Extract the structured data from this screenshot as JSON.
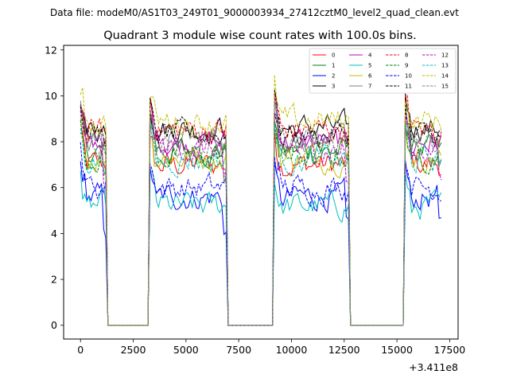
{
  "suptitle": "Data file: modeM0/AS1T03_249T01_9000003934_27412cztM0_level2_quad_clean.evt",
  "chart_data": {
    "type": "line",
    "title": "Quadrant 3 module wise count rates with 100.0s bins.",
    "xlabel": "",
    "ylabel": "",
    "x_offset_label": "+3.411e8",
    "xlim": [
      -800,
      17900
    ],
    "ylim": [
      -0.6,
      12.2
    ],
    "x_ticks": [
      0,
      2500,
      5000,
      7500,
      10000,
      12500,
      15000,
      17500
    ],
    "x_tick_labels": [
      "0",
      "2500",
      "5000",
      "7500",
      "10000",
      "12500",
      "15000",
      "17500"
    ],
    "y_ticks": [
      0,
      2,
      4,
      6,
      8,
      10,
      12
    ],
    "y_tick_labels": [
      "0",
      "2",
      "4",
      "6",
      "8",
      "10",
      "12"
    ],
    "grid": false,
    "legend_position": "top-right",
    "bin_width_s": 100,
    "on_segments": [
      [
        0,
        1200
      ],
      [
        3300,
        6900
      ],
      [
        9200,
        12700
      ],
      [
        15400,
        17100
      ]
    ],
    "off_level": 0,
    "series": [
      {
        "name": "0",
        "color": "#ff0000",
        "dash": "solid",
        "level": 7.0
      },
      {
        "name": "1",
        "color": "#008000",
        "dash": "solid",
        "level": 7.6
      },
      {
        "name": "2",
        "color": "#0000ff",
        "dash": "solid",
        "level": 5.6
      },
      {
        "name": "3",
        "color": "#000000",
        "dash": "solid",
        "level": 8.6
      },
      {
        "name": "4",
        "color": "#bf00bf",
        "dash": "solid",
        "level": 8.0
      },
      {
        "name": "5",
        "color": "#00bfbf",
        "dash": "solid",
        "level": 5.2
      },
      {
        "name": "6",
        "color": "#bfbf00",
        "dash": "solid",
        "level": 7.3
      },
      {
        "name": "7",
        "color": "#808080",
        "dash": "solid",
        "level": 8.1
      },
      {
        "name": "8",
        "color": "#ff0000",
        "dash": "dashed",
        "level": 8.5
      },
      {
        "name": "9",
        "color": "#008000",
        "dash": "dashed",
        "level": 7.4
      },
      {
        "name": "10",
        "color": "#0000ff",
        "dash": "dashed",
        "level": 6.0
      },
      {
        "name": "11",
        "color": "#000000",
        "dash": "dashed",
        "level": 8.3
      },
      {
        "name": "12",
        "color": "#bf00bf",
        "dash": "dashed",
        "level": 7.7
      },
      {
        "name": "13",
        "color": "#00bfbf",
        "dash": "dashed",
        "level": 7.2
      },
      {
        "name": "14",
        "color": "#bfbf00",
        "dash": "dashed",
        "level": 8.9
      },
      {
        "name": "15",
        "color": "#808080",
        "dash": "dashed",
        "level": 7.9
      }
    ]
  }
}
